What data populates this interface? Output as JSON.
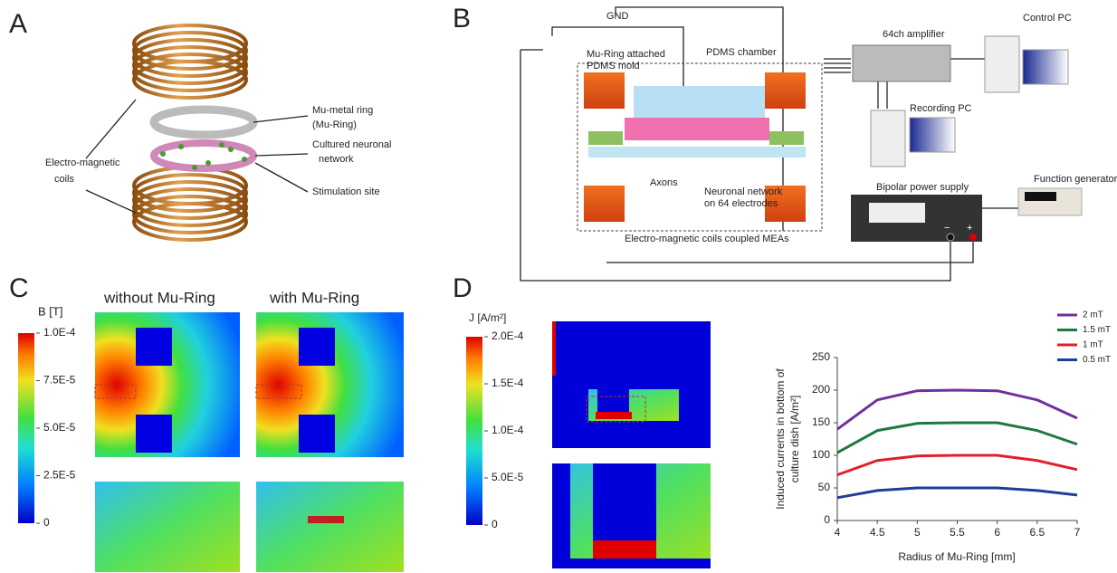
{
  "panels": {
    "A": {
      "letter": "A",
      "coils_label": [
        "Electro-magnetic",
        "coils"
      ],
      "ring_label": [
        "Mu-metal ring",
        "(Mu-Ring)"
      ],
      "network_label": [
        "Cultured neuronal",
        "network"
      ],
      "site_label": "Stimulation site"
    },
    "B": {
      "letter": "B",
      "gnd": "GND",
      "mold_label": [
        "Mu-Ring attached",
        "PDMS mold"
      ],
      "chamber_label": "PDMS chamber",
      "axons_label": "Axons",
      "network_label": [
        "Neuronal network",
        "on 64 electrodes"
      ],
      "mea_label": "Electro-magnetic coils coupled MEAs",
      "amplifier": "64ch amplifier",
      "control_pc": "Control PC",
      "recording_pc": "Recording PC",
      "power_supply": "Bipolar power supply",
      "function_generator": "Function generator",
      "minus": "−",
      "plus": "+"
    },
    "C": {
      "letter": "C",
      "title_left": "without Mu-Ring",
      "title_right": "with Mu-Ring",
      "colorbar": {
        "label": "B [T]",
        "ticks": [
          {
            "value": 0.0001,
            "label": "1.0E-4"
          },
          {
            "value": 7.5e-05,
            "label": "7.5E-5"
          },
          {
            "value": 5e-05,
            "label": "5.0E-5"
          },
          {
            "value": 2.5e-05,
            "label": "2.5E-5"
          },
          0
        ]
      }
    },
    "D": {
      "letter": "D",
      "colorbar": {
        "label": "J [A/m²]",
        "ticks": [
          {
            "value": 0.0002,
            "label": "2.0E-4"
          },
          {
            "value": 0.00015,
            "label": "1.5E-4"
          },
          {
            "value": 0.0001,
            "label": "1.0E-4"
          },
          {
            "value": 5e-05,
            "label": "5.0E-5"
          },
          0
        ]
      }
    }
  },
  "chart_data": {
    "type": "line",
    "xlabel": "Radius of Mu-Ring [mm]",
    "ylabel": [
      "Induced currents  in bottom of",
      "culture dish [A/m²]"
    ],
    "x": [
      4,
      4.5,
      5,
      5.5,
      6,
      6.5,
      7
    ],
    "series": [
      {
        "name": "2 mT",
        "color": "#7030a0",
        "values": [
          140,
          185,
          199,
          200,
          199,
          185,
          157
        ]
      },
      {
        "name": "1.5 mT",
        "color": "#1e7a3c",
        "values": [
          104,
          138,
          149,
          150,
          150,
          138,
          117
        ]
      },
      {
        "name": "1 mT",
        "color": "#e0202a",
        "values": [
          70,
          92,
          99,
          100,
          100,
          92,
          78
        ]
      },
      {
        "name": "0.5 mT",
        "color": "#1f3d99",
        "values": [
          35,
          46,
          50,
          50,
          50,
          46,
          39
        ]
      }
    ],
    "xlim": [
      4,
      7
    ],
    "xticks": [
      4,
      4.5,
      5,
      5.5,
      6,
      6.5,
      7
    ],
    "ylim": [
      0,
      250
    ],
    "yticks": [
      0,
      50,
      100,
      150,
      200,
      250
    ],
    "legend": "top-right"
  }
}
